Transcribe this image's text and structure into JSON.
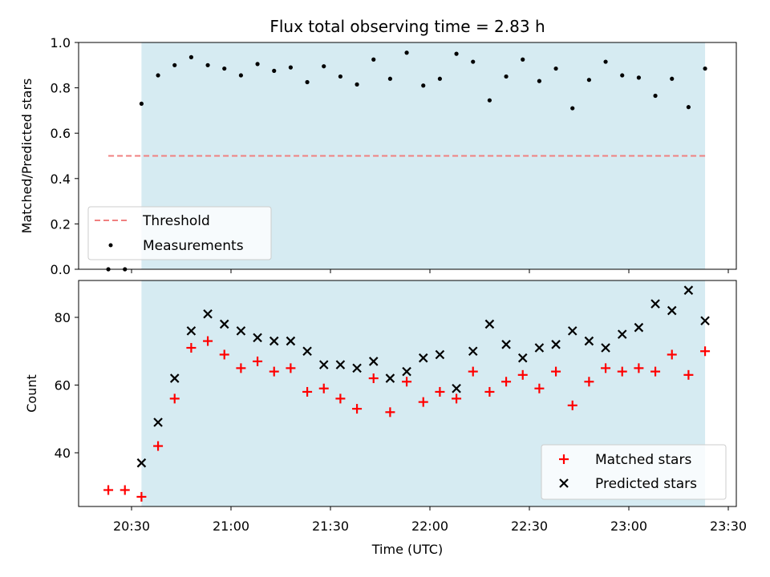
{
  "chart_data": [
    {
      "type": "scatter",
      "title": "Flux total observing time = 2.83 h",
      "xlabel": "",
      "ylabel": "Matched/Predicted stars",
      "ylim": [
        0,
        1
      ],
      "yticks": [
        "0.0",
        "0.2",
        "0.4",
        "0.6",
        "0.8",
        "1.0"
      ],
      "shaded_region": {
        "start": "20:33",
        "end": "23:23",
        "color": "#add8e6"
      },
      "threshold": {
        "name": "Threshold",
        "value": 0.5,
        "start": "20:23",
        "end": "23:23",
        "color": "#f08080"
      },
      "legend": {
        "placement": "lower-left",
        "entries": [
          "Threshold",
          "Measurements"
        ]
      },
      "series": [
        {
          "name": "Measurements",
          "color": "#000000",
          "x": [
            "20:23",
            "20:28",
            "20:33",
            "20:38",
            "20:43",
            "20:48",
            "20:53",
            "20:58",
            "21:03",
            "21:08",
            "21:13",
            "21:18",
            "21:23",
            "21:28",
            "21:33",
            "21:38",
            "21:43",
            "21:48",
            "21:53",
            "21:58",
            "22:03",
            "22:08",
            "22:13",
            "22:18",
            "22:23",
            "22:28",
            "22:33",
            "22:38",
            "22:43",
            "22:48",
            "22:53",
            "22:58",
            "23:03",
            "23:08",
            "23:13",
            "23:18",
            "23:23"
          ],
          "values": [
            0.0,
            0.0,
            0.73,
            0.855,
            0.9,
            0.935,
            0.9,
            0.885,
            0.855,
            0.905,
            0.875,
            0.89,
            0.825,
            0.895,
            0.85,
            0.815,
            0.925,
            0.84,
            0.955,
            0.81,
            0.84,
            0.95,
            0.915,
            0.745,
            0.85,
            0.925,
            0.83,
            0.885,
            0.71,
            0.835,
            0.915,
            0.855,
            0.845,
            0.765,
            0.84,
            0.715,
            0.885
          ]
        }
      ]
    },
    {
      "type": "scatter",
      "title": "",
      "xlabel": "Time (UTC)",
      "ylabel": "Count",
      "ylim": [
        24,
        91
      ],
      "yticks": [
        "40",
        "60",
        "80"
      ],
      "xticks": [
        "20:30",
        "21:00",
        "21:30",
        "22:00",
        "22:30",
        "23:00",
        "23:30"
      ],
      "shaded_region": {
        "start": "20:33",
        "end": "23:23",
        "color": "#add8e6"
      },
      "legend": {
        "placement": "lower-right",
        "entries": [
          "Matched stars",
          "Predicted stars"
        ]
      },
      "x": [
        "20:23",
        "20:28",
        "20:33",
        "20:38",
        "20:43",
        "20:48",
        "20:53",
        "20:58",
        "21:03",
        "21:08",
        "21:13",
        "21:18",
        "21:23",
        "21:28",
        "21:33",
        "21:38",
        "21:43",
        "21:48",
        "21:53",
        "21:58",
        "22:03",
        "22:08",
        "22:13",
        "22:18",
        "22:23",
        "22:28",
        "22:33",
        "22:38",
        "22:43",
        "22:48",
        "22:53",
        "22:58",
        "23:03",
        "23:08",
        "23:13",
        "23:18",
        "23:23"
      ],
      "series": [
        {
          "name": "Matched stars",
          "marker": "+",
          "color": "#ff0000",
          "values": [
            29,
            29,
            27,
            42,
            56,
            71,
            73,
            69,
            65,
            67,
            64,
            65,
            58,
            59,
            56,
            53,
            62,
            52,
            61,
            55,
            58,
            56,
            64,
            58,
            61,
            63,
            59,
            64,
            54,
            61,
            65,
            64,
            65,
            64,
            69,
            63,
            70
          ]
        },
        {
          "name": "Predicted stars",
          "marker": "x",
          "color": "#000000",
          "values": [
            null,
            null,
            37,
            49,
            62,
            76,
            81,
            78,
            76,
            74,
            73,
            73,
            70,
            66,
            66,
            65,
            67,
            62,
            64,
            68,
            69,
            59,
            70,
            78,
            72,
            68,
            71,
            72,
            76,
            73,
            71,
            75,
            77,
            84,
            82,
            88,
            79
          ]
        }
      ]
    }
  ]
}
